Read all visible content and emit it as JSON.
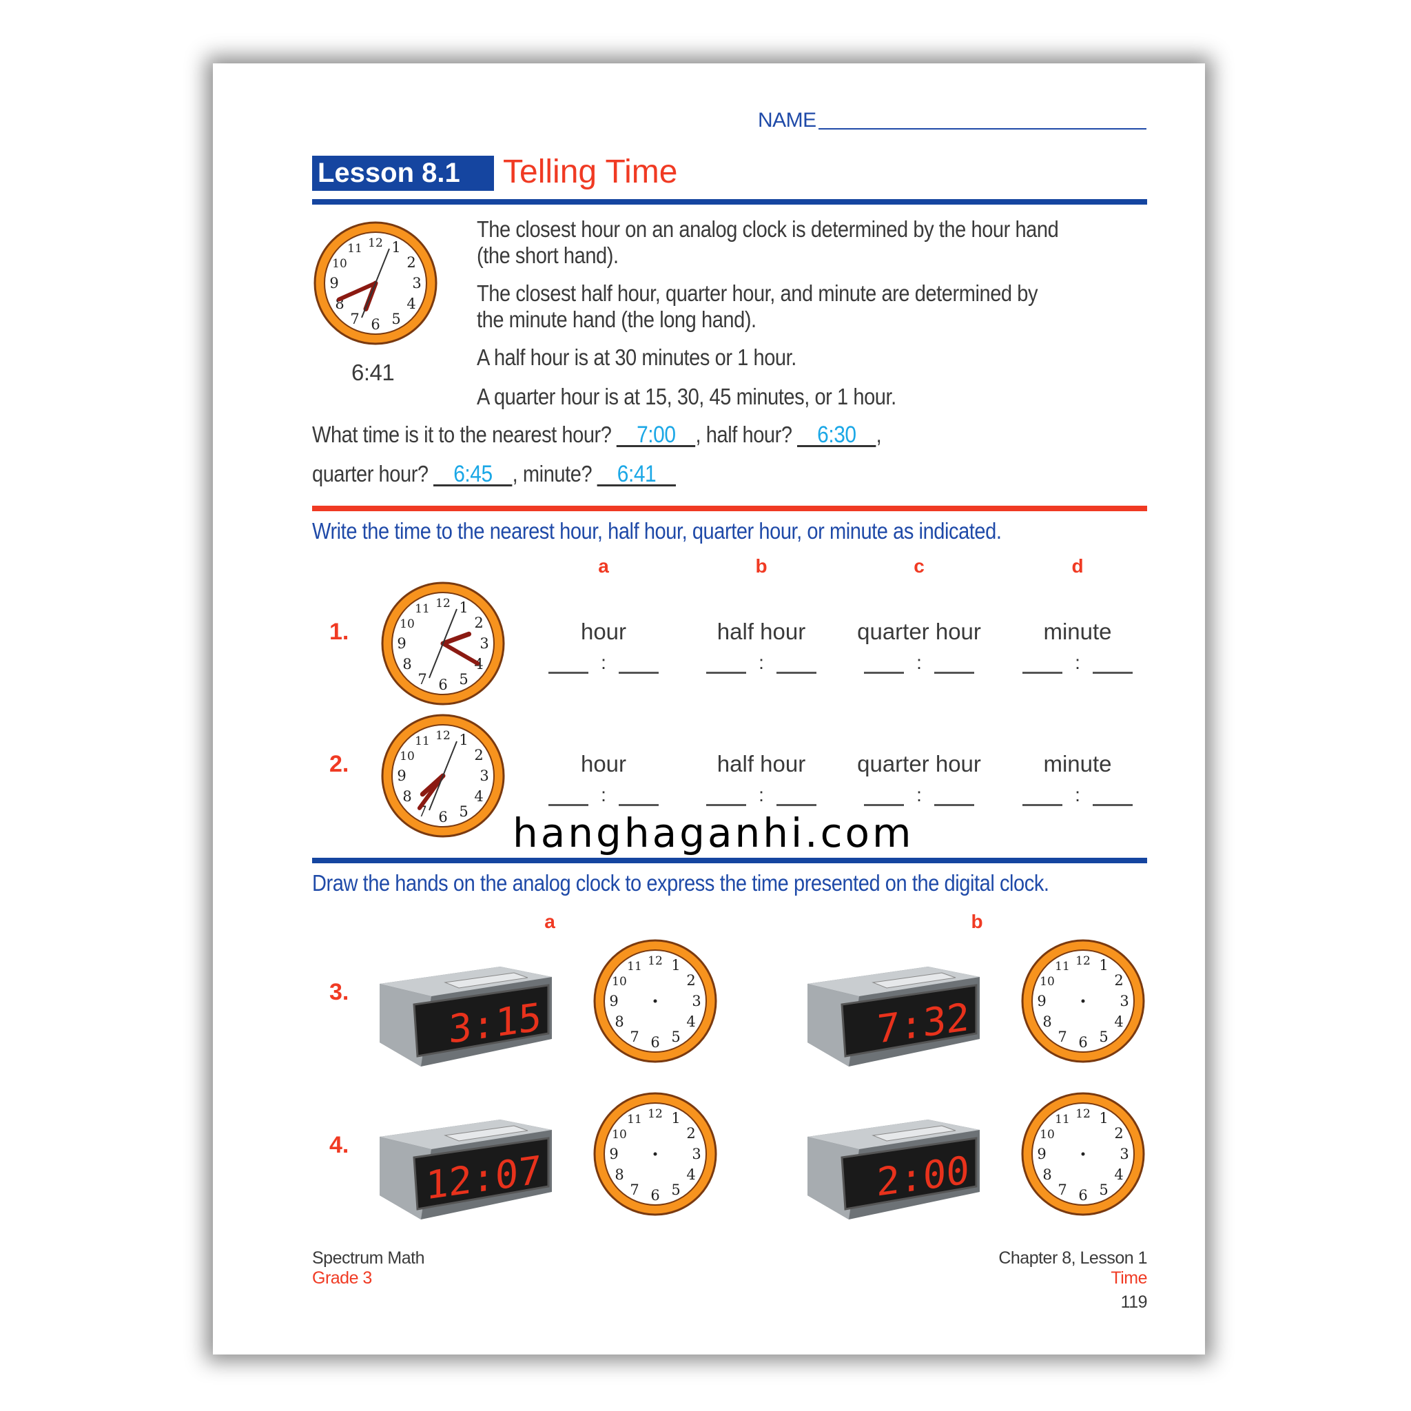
{
  "header": {
    "name_label": "NAME",
    "lesson_badge": "Lesson 8.1",
    "lesson_title": "Telling Time"
  },
  "intro": {
    "clock_time": "6:41",
    "paragraphs": [
      "The closest hour on an analog clock is determined by the hour hand",
      "(the short hand).",
      "The closest half hour, quarter hour, and minute are determined by",
      "the minute hand (the long hand).",
      "A half hour is at 30 minutes or 1 hour.",
      "A quarter hour is at 15, 30, 45 minutes, or 1 hour."
    ],
    "question": {
      "q1": "What time is it to the nearest hour?",
      "a1": "7:00",
      "q2": ", half hour?",
      "a2": "6:30",
      "q3": "quarter hour?",
      "a3": "6:45",
      "q4": ", minute?",
      "a4": "6:41"
    }
  },
  "section1": {
    "instruction": "Write the time to the nearest hour, half hour, quarter hour, or minute as indicated.",
    "columns": [
      {
        "letter": "a",
        "label": "hour"
      },
      {
        "letter": "b",
        "label": "half hour"
      },
      {
        "letter": "c",
        "label": "quarter hour"
      },
      {
        "letter": "d",
        "label": "minute"
      }
    ],
    "rows": [
      {
        "number": "1.",
        "clock_shows": "2:20"
      },
      {
        "number": "2.",
        "clock_shows": "7:36"
      }
    ],
    "colon": ":"
  },
  "section2": {
    "instruction": "Draw the hands on the analog clock to express the time presented on the digital clock.",
    "columns": [
      "a",
      "b"
    ],
    "rows": [
      {
        "number": "3.",
        "times": [
          "3:15",
          "7:32"
        ]
      },
      {
        "number": "4.",
        "times": [
          "12:07",
          "2:00"
        ]
      }
    ]
  },
  "watermark": "hanghaganhi.com",
  "footer": {
    "publisher": "Spectrum Math",
    "grade": "Grade 3",
    "chapter": "Chapter 8, Lesson 1",
    "topic": "Time",
    "page": "119"
  },
  "colors": {
    "blue": "#1f4aa8",
    "red": "#f03a23",
    "answer": "#1aa7e6",
    "clock_rim": "#f7931e",
    "led": "#e8321c"
  }
}
